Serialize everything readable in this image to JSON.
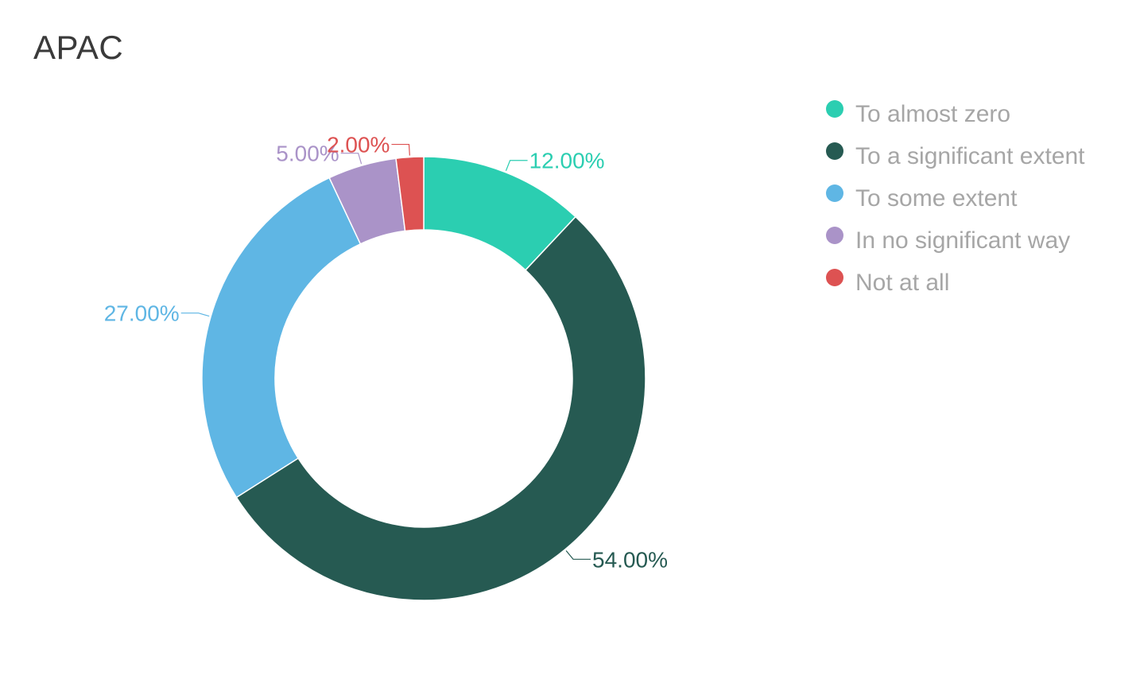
{
  "chart_data": {
    "type": "pie",
    "title": "APAC",
    "style": "donut",
    "legend_position": "right",
    "label_format": "percent",
    "slices": [
      {
        "name": "To almost zero",
        "value": 12.0,
        "label": "12.00%",
        "color": "#2bceb1"
      },
      {
        "name": "To a significant extent",
        "value": 54.0,
        "label": "54.00%",
        "color": "#265a52"
      },
      {
        "name": "To some extent",
        "value": 27.0,
        "label": "27.00%",
        "color": "#5fb6e4"
      },
      {
        "name": "In no significant way",
        "value": 5.0,
        "label": "5.00%",
        "color": "#aa93c8"
      },
      {
        "name": "Not at all",
        "value": 2.0,
        "label": "2.00%",
        "color": "#dd5252"
      }
    ]
  }
}
